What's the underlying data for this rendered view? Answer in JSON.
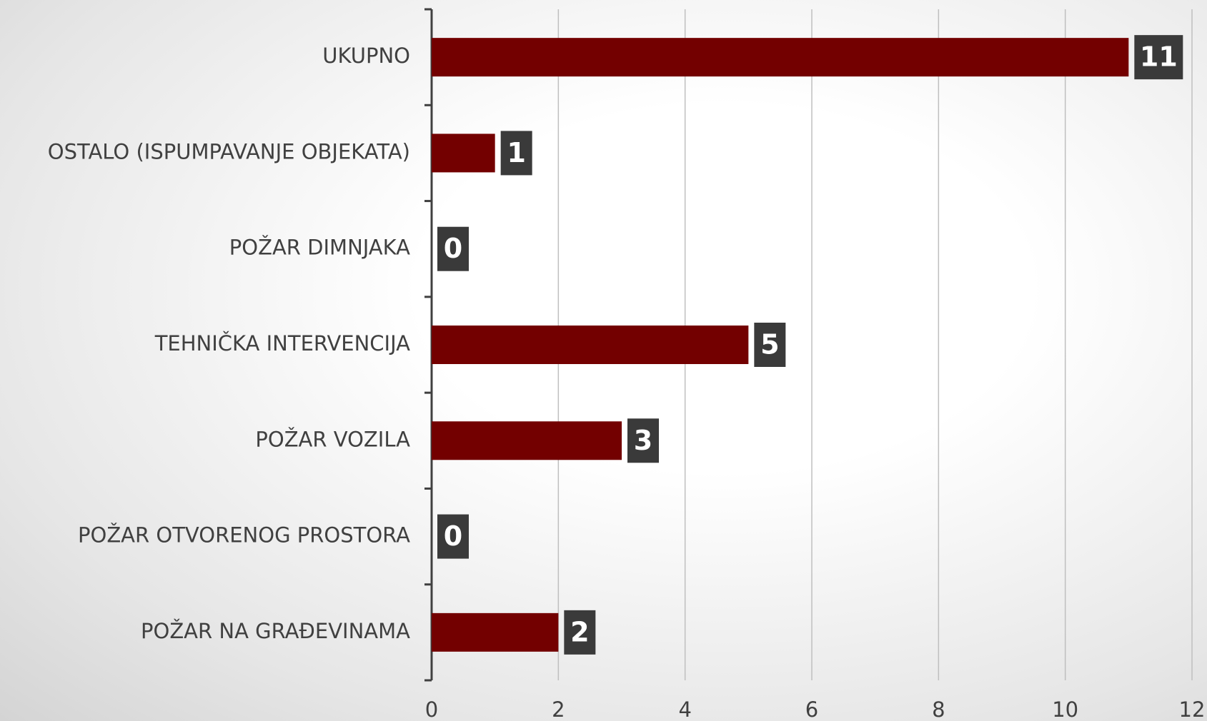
{
  "chart_data": {
    "type": "bar",
    "orientation": "horizontal",
    "categories": [
      "UKUPNO",
      "OSTALO (ISPUMPAVANJE OBJEKATA)",
      "POŽAR DIMNJAKA",
      "TEHNIČKA INTERVENCIJA",
      "POŽAR VOZILA",
      "POŽAR OTVORENOG PROSTORA",
      "POŽAR NA GRAĐEVINAMA"
    ],
    "values": [
      11,
      1,
      0,
      5,
      3,
      0,
      2
    ],
    "color": "#730000",
    "xlim": [
      0,
      12
    ],
    "xticks": [
      0,
      2,
      4,
      6,
      8,
      10,
      12
    ],
    "grid": true
  }
}
